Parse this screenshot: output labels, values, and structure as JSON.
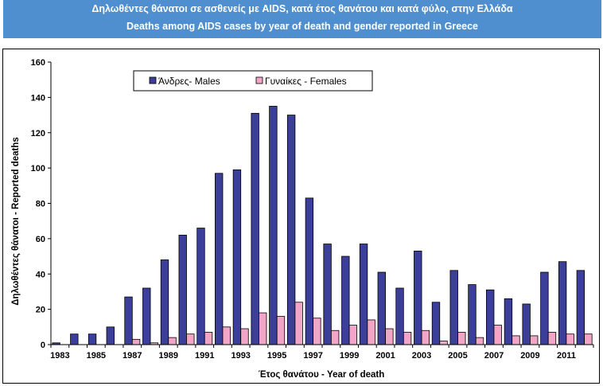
{
  "header": {
    "title_greek": "Δηλωθέντες θάνατοι σε ασθενείς με AIDS, κατά έτος θανάτου και κατά φύλο, στην Ελλάδα",
    "title_english": "Deaths among AIDS cases by year of death and gender reported in Greece"
  },
  "chart_data": {
    "type": "bar",
    "title": "Deaths among AIDS cases by year of death and gender reported in Greece",
    "xlabel": "Έτος θανάτου - Year of death",
    "ylabel": "Δηλωθέντες θάνατοι - Reported deaths",
    "ylim": [
      0,
      160
    ],
    "yticks": [
      0,
      20,
      40,
      60,
      80,
      100,
      120,
      140,
      160
    ],
    "grid": false,
    "legend_position": "top-left",
    "categories": [
      "1983",
      "1984",
      "1985",
      "1986",
      "1987",
      "1988",
      "1989",
      "1990",
      "1991",
      "1992",
      "1993",
      "1994",
      "1995",
      "1996",
      "1997",
      "1998",
      "1999",
      "2000",
      "2001",
      "2002",
      "2003",
      "2004",
      "2005",
      "2006",
      "2007",
      "2008",
      "2009",
      "2010",
      "2011",
      "2012"
    ],
    "xtick_labels": [
      "1983",
      "1985",
      "1987",
      "1989",
      "1991",
      "1993",
      "1995",
      "1997",
      "1999",
      "2001",
      "2003",
      "2005",
      "2007",
      "2009",
      "2011"
    ],
    "series": [
      {
        "name": "Άνδρες- Males",
        "color": "#3c3f99",
        "values": [
          1,
          6,
          6,
          10,
          27,
          32,
          48,
          62,
          66,
          97,
          99,
          131,
          135,
          130,
          83,
          57,
          50,
          57,
          41,
          32,
          53,
          24,
          42,
          34,
          31,
          26,
          23,
          41,
          47,
          42
        ]
      },
      {
        "name": "Γυναίκες - Females",
        "color": "#f2a5c6",
        "values": [
          0,
          0,
          0,
          0,
          3,
          1,
          4,
          6,
          7,
          10,
          9,
          18,
          16,
          24,
          15,
          8,
          11,
          14,
          9,
          7,
          8,
          2,
          7,
          4,
          11,
          5,
          5,
          7,
          6,
          6
        ]
      }
    ]
  }
}
